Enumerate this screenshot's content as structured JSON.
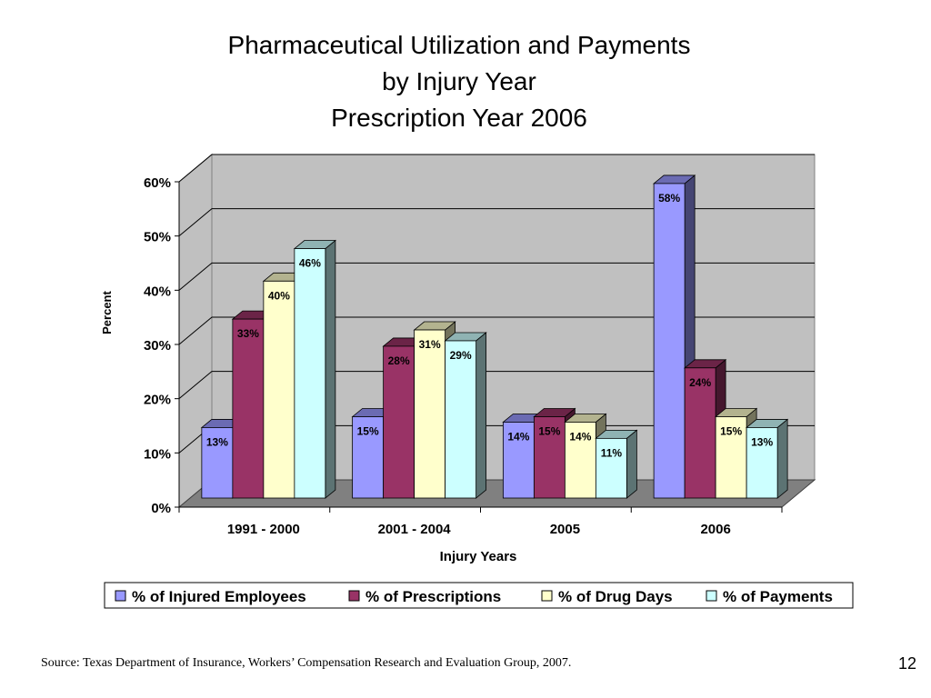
{
  "slide": {
    "title_line1": "Pharmaceutical Utilization and Payments",
    "title_line2": "by Injury Year",
    "title_line3": "Prescription Year 2006",
    "source": "Source: Texas Department of Insurance, Workers’ Compensation Research and Evaluation Group, 2007.",
    "page_number": "12"
  },
  "chart_data": {
    "type": "bar",
    "ylabel": "Percent",
    "xlabel": "Injury Years",
    "categories": [
      "1991 - 2000",
      "2001 - 2004",
      "2005",
      "2006"
    ],
    "ylim": [
      0,
      60
    ],
    "yticks": [
      "0%",
      "10%",
      "20%",
      "30%",
      "40%",
      "50%",
      "60%"
    ],
    "grid": true,
    "legend_position": "bottom",
    "series": [
      {
        "name": "% of Injured Employees",
        "values": [
          13,
          15,
          14,
          58
        ],
        "labels": [
          "13%",
          "15%",
          "14%",
          "58%"
        ],
        "color": "#9999FF"
      },
      {
        "name": "% of Prescriptions",
        "values": [
          33,
          28,
          15,
          24
        ],
        "labels": [
          "33%",
          "28%",
          "15%",
          "24%"
        ],
        "color": "#993366"
      },
      {
        "name": "% of Drug Days",
        "values": [
          40,
          31,
          14,
          15
        ],
        "labels": [
          "40%",
          "31%",
          "14%",
          "15%"
        ],
        "color": "#FFFFCC"
      },
      {
        "name": "% of Payments",
        "values": [
          46,
          29,
          11,
          13
        ],
        "labels": [
          "46%",
          "29%",
          "11%",
          "13%"
        ],
        "color": "#CCFFFF"
      }
    ]
  }
}
